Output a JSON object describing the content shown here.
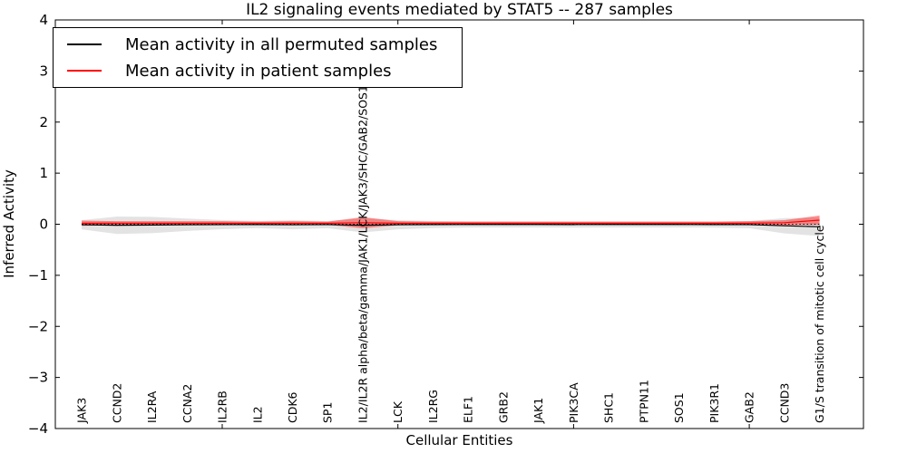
{
  "figure": {
    "title": "IL2 signaling events mediated by STAT5 -- 287 samples",
    "xlabel": "Cellular Entities",
    "ylabel": "Inferred Activity"
  },
  "legend": {
    "items": [
      {
        "label": "Mean activity in all permuted samples",
        "color": "#000000"
      },
      {
        "label": "Mean activity in patient samples",
        "color": "#ff0000"
      }
    ]
  },
  "chart_data": {
    "type": "line",
    "title": "IL2 signaling events mediated by STAT5 -- 287 samples",
    "xlabel": "Cellular Entities",
    "ylabel": "Inferred Activity",
    "ylim": [
      -4,
      4
    ],
    "ytick_labels": [
      "4",
      "3",
      "2",
      "1",
      "0",
      "−1",
      "−2",
      "−3",
      "−4"
    ],
    "ytick_values": [
      4,
      3,
      2,
      1,
      0,
      -1,
      -2,
      -3,
      -4
    ],
    "xlim_units": [
      0,
      23
    ],
    "xtick_unit_positions": [
      5,
      10,
      15,
      20
    ],
    "grid": false,
    "legend_position": "upper left",
    "categories": [
      "JAK3",
      "CCND2",
      "IL2RA",
      "CCNA2",
      "IL2RB",
      "IL2",
      "CDK6",
      "SP1",
      "IL2/IL2R alpha/beta/gamma/JAK1/LCK/JAK3/SHC/GAB2/SOS1",
      "LCK",
      "IL2RG",
      "ELF1",
      "GRB2",
      "JAK1",
      "PIK3CA",
      "SHC1",
      "PTPN11",
      "SOS1",
      "PIK3R1",
      "GAB2",
      "CCND3",
      "G1/S transition of mitotic cell cycle"
    ],
    "series": [
      {
        "name": "Mean activity in all permuted samples",
        "line_color": "#000000",
        "band_color": "#999999",
        "band_opacity": 0.28,
        "mean": [
          -0.01,
          -0.02,
          -0.015,
          -0.01,
          -0.008,
          -0.006,
          -0.01,
          -0.008,
          -0.02,
          -0.01,
          -0.006,
          -0.005,
          -0.005,
          -0.005,
          -0.006,
          -0.005,
          -0.005,
          -0.005,
          -0.006,
          -0.008,
          -0.03,
          -0.05
        ],
        "std": [
          0.09,
          0.17,
          0.16,
          0.12,
          0.09,
          0.07,
          0.09,
          0.07,
          0.14,
          0.09,
          0.07,
          0.06,
          0.06,
          0.06,
          0.06,
          0.06,
          0.06,
          0.06,
          0.06,
          0.07,
          0.15,
          0.18
        ]
      },
      {
        "name": "Mean activity in patient samples",
        "line_color": "#ff0000",
        "band_color": "#ff0000",
        "band_opacity": 0.42,
        "mean": [
          0.02,
          0.02,
          0.02,
          0.02,
          0.02,
          0.02,
          0.02,
          0.02,
          0.03,
          0.02,
          0.02,
          0.02,
          0.02,
          0.02,
          0.02,
          0.02,
          0.02,
          0.02,
          0.02,
          0.02,
          0.03,
          0.08
        ],
        "std": [
          0.05,
          0.04,
          0.04,
          0.04,
          0.04,
          0.03,
          0.04,
          0.03,
          0.11,
          0.04,
          0.03,
          0.03,
          0.03,
          0.03,
          0.03,
          0.03,
          0.03,
          0.03,
          0.03,
          0.04,
          0.05,
          0.09
        ]
      }
    ],
    "zero_line": {
      "value": 0,
      "color": "#000000",
      "style": "dotted"
    }
  }
}
